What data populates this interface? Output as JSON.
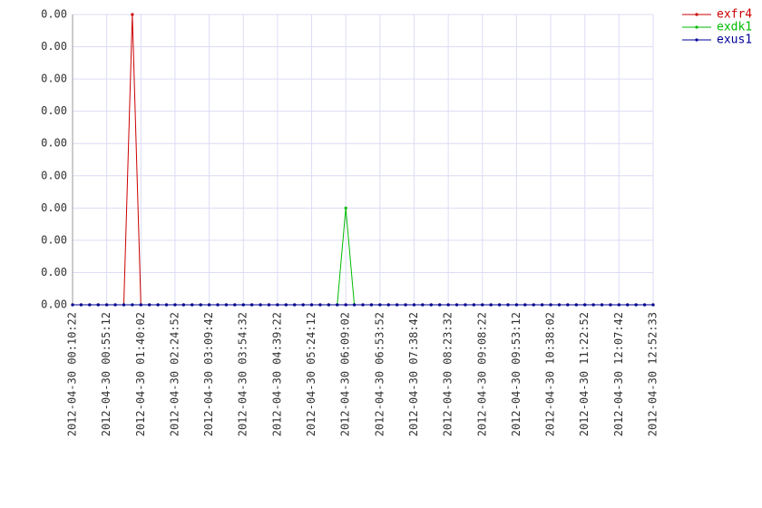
{
  "chart_data": {
    "type": "line",
    "categories": [
      "2012-04-30 00:10:22",
      null,
      null,
      null,
      "2012-04-30 00:55:12",
      null,
      null,
      null,
      "2012-04-30 01:40:02",
      null,
      null,
      null,
      "2012-04-30 02:24:52",
      null,
      null,
      null,
      "2012-04-30 03:09:42",
      null,
      null,
      null,
      "2012-04-30 03:54:32",
      null,
      null,
      null,
      "2012-04-30 04:39:22",
      null,
      null,
      null,
      "2012-04-30 05:24:12",
      null,
      null,
      null,
      "2012-04-30 06:09:02",
      null,
      null,
      null,
      "2012-04-30 06:53:52",
      null,
      null,
      null,
      "2012-04-30 07:38:42",
      null,
      null,
      null,
      "2012-04-30 08:23:32",
      null,
      null,
      null,
      "2012-04-30 09:08:22",
      null,
      null,
      null,
      "2012-04-30 09:53:12",
      null,
      null,
      null,
      "2012-04-30 10:38:02",
      null,
      null,
      null,
      "2012-04-30 11:22:52",
      null,
      null,
      null,
      "2012-04-30 12:07:42",
      null,
      null,
      null,
      "2012-04-30 12:52:33"
    ],
    "series": [
      {
        "name": "exfr4",
        "color": "#cc0000",
        "values": [
          0,
          0,
          0,
          0,
          0,
          0,
          0,
          0.0045,
          0,
          0,
          0,
          0,
          0,
          0,
          0,
          0,
          0,
          0,
          0,
          0,
          0,
          0,
          0,
          0,
          0,
          0,
          0,
          0,
          0,
          0,
          0,
          0,
          0,
          0,
          0,
          0,
          0,
          0,
          0,
          0,
          0,
          0,
          0,
          0,
          0,
          0,
          0,
          0,
          0,
          0,
          0,
          0,
          0,
          0,
          0,
          0,
          0,
          0,
          0,
          0,
          0,
          0,
          0,
          0,
          0,
          0,
          0,
          0,
          0
        ]
      },
      {
        "name": "exdk1",
        "color": "#00bb00",
        "values": [
          0,
          0,
          0,
          0,
          0,
          0,
          0,
          0,
          0,
          0,
          0,
          0,
          0,
          0,
          0,
          0,
          0,
          0,
          0,
          0,
          0,
          0,
          0,
          0,
          0,
          0,
          0,
          0,
          0,
          0,
          0,
          0,
          0.0015,
          0,
          0,
          0,
          0,
          0,
          0,
          0,
          0,
          0,
          0,
          0,
          0,
          0,
          0,
          0,
          0,
          0,
          0,
          0,
          0,
          0,
          0,
          0,
          0,
          0,
          0,
          0,
          0,
          0,
          0,
          0,
          0,
          0,
          0,
          0,
          0
        ]
      },
      {
        "name": "exus1",
        "color": "#000099",
        "values": [
          0,
          0,
          0,
          0,
          0,
          0,
          0,
          0,
          0,
          0,
          0,
          0,
          0,
          0,
          0,
          0,
          0,
          0,
          0,
          0,
          0,
          0,
          0,
          0,
          0,
          0,
          0,
          0,
          0,
          0,
          0,
          0,
          0,
          0,
          0,
          0,
          0,
          0,
          0,
          0,
          0,
          0,
          0,
          0,
          0,
          0,
          0,
          0,
          0,
          0,
          0,
          0,
          0,
          0,
          0,
          0,
          0,
          0,
          0,
          0,
          0,
          0,
          0,
          0,
          0,
          0,
          0,
          0,
          0
        ]
      }
    ],
    "ylim": [
      0,
      0.0045
    ],
    "yticks": [
      {
        "value": 0,
        "label": "0.00"
      },
      {
        "value": 0.0005,
        "label": "0.00"
      },
      {
        "value": 0.001,
        "label": "0.00"
      },
      {
        "value": 0.0015,
        "label": "0.00"
      },
      {
        "value": 0.002,
        "label": "0.00"
      },
      {
        "value": 0.0025,
        "label": "0.00"
      },
      {
        "value": 0.003,
        "label": "0.00"
      },
      {
        "value": 0.0035,
        "label": "0.00"
      },
      {
        "value": 0.004,
        "label": "0.00"
      },
      {
        "value": 0.0045,
        "label": "0.00"
      }
    ],
    "grid": true,
    "legend": "top-right"
  }
}
